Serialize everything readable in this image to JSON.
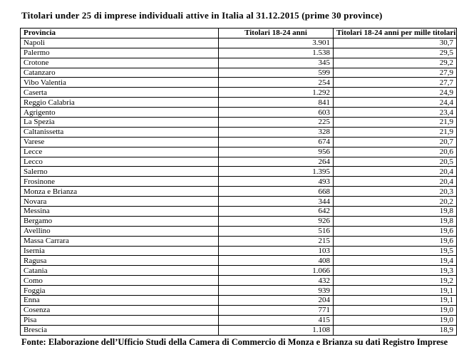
{
  "title": "Titolari under 25 di imprese individuali attive in Italia al 31.12.2015 (prime 30 province)",
  "table": {
    "columns": [
      "Provincia",
      "Titolari 18-24 anni",
      "Titolari 18-24 anni per mille titolari"
    ],
    "rows": [
      {
        "provincia": "Napoli",
        "titolari": "3.901",
        "per_mille": "30,7"
      },
      {
        "provincia": "Palermo",
        "titolari": "1.538",
        "per_mille": "29,5"
      },
      {
        "provincia": "Crotone",
        "titolari": "345",
        "per_mille": "29,2"
      },
      {
        "provincia": "Catanzaro",
        "titolari": "599",
        "per_mille": "27,9"
      },
      {
        "provincia": "Vibo Valentia",
        "titolari": "254",
        "per_mille": "27,7"
      },
      {
        "provincia": "Caserta",
        "titolari": "1.292",
        "per_mille": "24,9"
      },
      {
        "provincia": "Reggio Calabria",
        "titolari": "841",
        "per_mille": "24,4"
      },
      {
        "provincia": "Agrigento",
        "titolari": "603",
        "per_mille": "23,4"
      },
      {
        "provincia": "La Spezia",
        "titolari": "225",
        "per_mille": "21,9"
      },
      {
        "provincia": "Caltanissetta",
        "titolari": "328",
        "per_mille": "21,9"
      },
      {
        "provincia": "Varese",
        "titolari": "674",
        "per_mille": "20,7"
      },
      {
        "provincia": "Lecce",
        "titolari": "956",
        "per_mille": "20,6"
      },
      {
        "provincia": "Lecco",
        "titolari": "264",
        "per_mille": "20,5"
      },
      {
        "provincia": "Salerno",
        "titolari": "1.395",
        "per_mille": "20,4"
      },
      {
        "provincia": "Frosinone",
        "titolari": "493",
        "per_mille": "20,4"
      },
      {
        "provincia": "Monza e Brianza",
        "titolari": "668",
        "per_mille": "20,3"
      },
      {
        "provincia": "Novara",
        "titolari": "344",
        "per_mille": "20,2"
      },
      {
        "provincia": "Messina",
        "titolari": "642",
        "per_mille": "19,8"
      },
      {
        "provincia": "Bergamo",
        "titolari": "926",
        "per_mille": "19,8"
      },
      {
        "provincia": "Avellino",
        "titolari": "516",
        "per_mille": "19,6"
      },
      {
        "provincia": "Massa Carrara",
        "titolari": "215",
        "per_mille": "19,6"
      },
      {
        "provincia": "Isernia",
        "titolari": "103",
        "per_mille": "19,5"
      },
      {
        "provincia": "Ragusa",
        "titolari": "408",
        "per_mille": "19,4"
      },
      {
        "provincia": "Catania",
        "titolari": "1.066",
        "per_mille": "19,3"
      },
      {
        "provincia": "Como",
        "titolari": "432",
        "per_mille": "19,2"
      },
      {
        "provincia": "Foggia",
        "titolari": "939",
        "per_mille": "19,1"
      },
      {
        "provincia": "Enna",
        "titolari": "204",
        "per_mille": "19,1"
      },
      {
        "provincia": "Cosenza",
        "titolari": "771",
        "per_mille": "19,0"
      },
      {
        "provincia": "Pisa",
        "titolari": "415",
        "per_mille": "19,0"
      },
      {
        "provincia": "Brescia",
        "titolari": "1.108",
        "per_mille": "18,9"
      }
    ]
  },
  "footer": "Fonte: Elaborazione dell’Ufficio Studi della Camera di Commercio di Monza e Brianza su dati Registro Imprese",
  "colors": {
    "text": "#000000",
    "background": "#ffffff",
    "border": "#000000"
  }
}
